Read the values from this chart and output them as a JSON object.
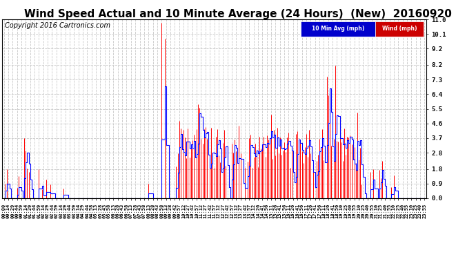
{
  "title": "Wind Speed Actual and 10 Minute Average (24 Hours)  (New)  20160920",
  "copyright": "Copyright 2016 Cartronics.com",
  "legend_avg": "10 Min Avg (mph)",
  "legend_wind": "Wind (mph)",
  "yticks": [
    0.0,
    0.9,
    1.8,
    2.8,
    3.7,
    4.6,
    5.5,
    6.4,
    7.3,
    8.2,
    9.2,
    10.1,
    11.0
  ],
  "ylim": [
    0.0,
    11.0
  ],
  "color_avg": "#0000ff",
  "color_wind": "#ff0000",
  "bg_color": "#ffffff",
  "grid_color": "#c8c8c8",
  "legend_avg_bg": "#0000cc",
  "legend_wind_bg": "#cc0000",
  "title_fontsize": 11,
  "copyright_fontsize": 7,
  "num_points": 289,
  "xlim_min": -1,
  "xlim_max": 289
}
